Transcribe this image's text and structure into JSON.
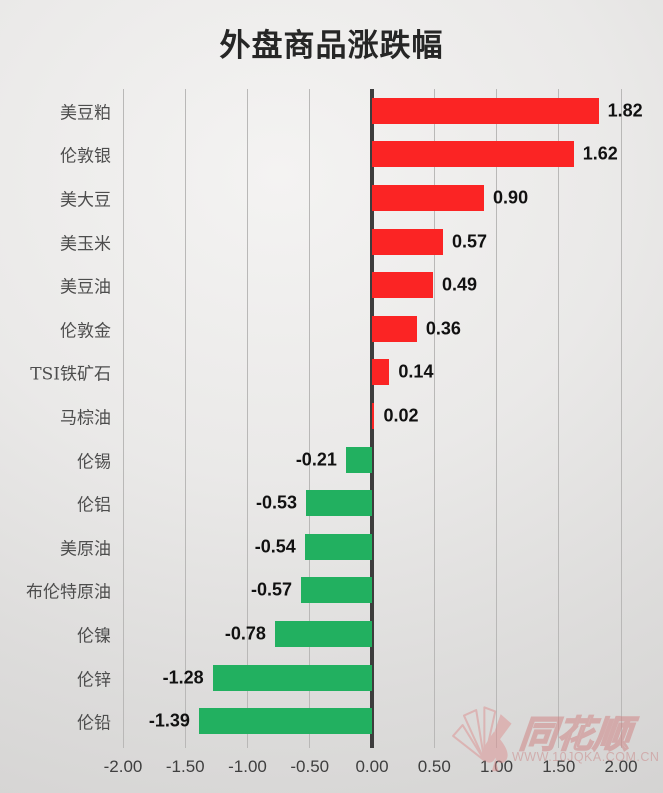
{
  "header": {
    "title": "外盘商品涨跌幅"
  },
  "colors": {
    "positive_bar": "#fb2424",
    "negative_bar": "#22b060",
    "zero_axis": "#3d3d3d",
    "gridline": "#b9b8b7",
    "watermark_pink": "#cf7f7f"
  },
  "chart_data": {
    "type": "bar",
    "orientation": "horizontal",
    "title": "外盘商品涨跌幅",
    "xlabel": "",
    "ylabel": "",
    "xlim": [
      -2.0,
      2.0
    ],
    "grid": true,
    "categories": [
      "美豆粕",
      "伦敦银",
      "美大豆",
      "美玉米",
      "美豆油",
      "伦敦金",
      "TSI铁矿石",
      "马棕油",
      "伦锡",
      "伦铝",
      "美原油",
      "布伦特原油",
      "伦镍",
      "伦锌",
      "伦铅"
    ],
    "values": [
      1.82,
      1.62,
      0.9,
      0.57,
      0.49,
      0.36,
      0.14,
      0.02,
      -0.21,
      -0.53,
      -0.54,
      -0.57,
      -0.78,
      -1.28,
      -1.39
    ],
    "value_labels": [
      "1.82",
      "1.62",
      "0.90",
      "0.57",
      "0.49",
      "0.36",
      "0.14",
      "0.02",
      "-0.21",
      "-0.53",
      "-0.54",
      "-0.57",
      "-0.78",
      "-1.28",
      "-1.39"
    ],
    "x_ticks": [
      -2.0,
      -1.5,
      -1.0,
      -0.5,
      0.0,
      0.5,
      1.0,
      1.5,
      2.0
    ],
    "x_tick_labels": [
      "-2.00",
      "-1.50",
      "-1.00",
      "-0.50",
      "0.00",
      "0.50",
      "1.00",
      "1.50",
      "2.00"
    ]
  },
  "watermark": {
    "brand": "同花顺",
    "url": "WWW.10JQKA.COM.CN",
    "logo": "fan-spade-logo"
  }
}
